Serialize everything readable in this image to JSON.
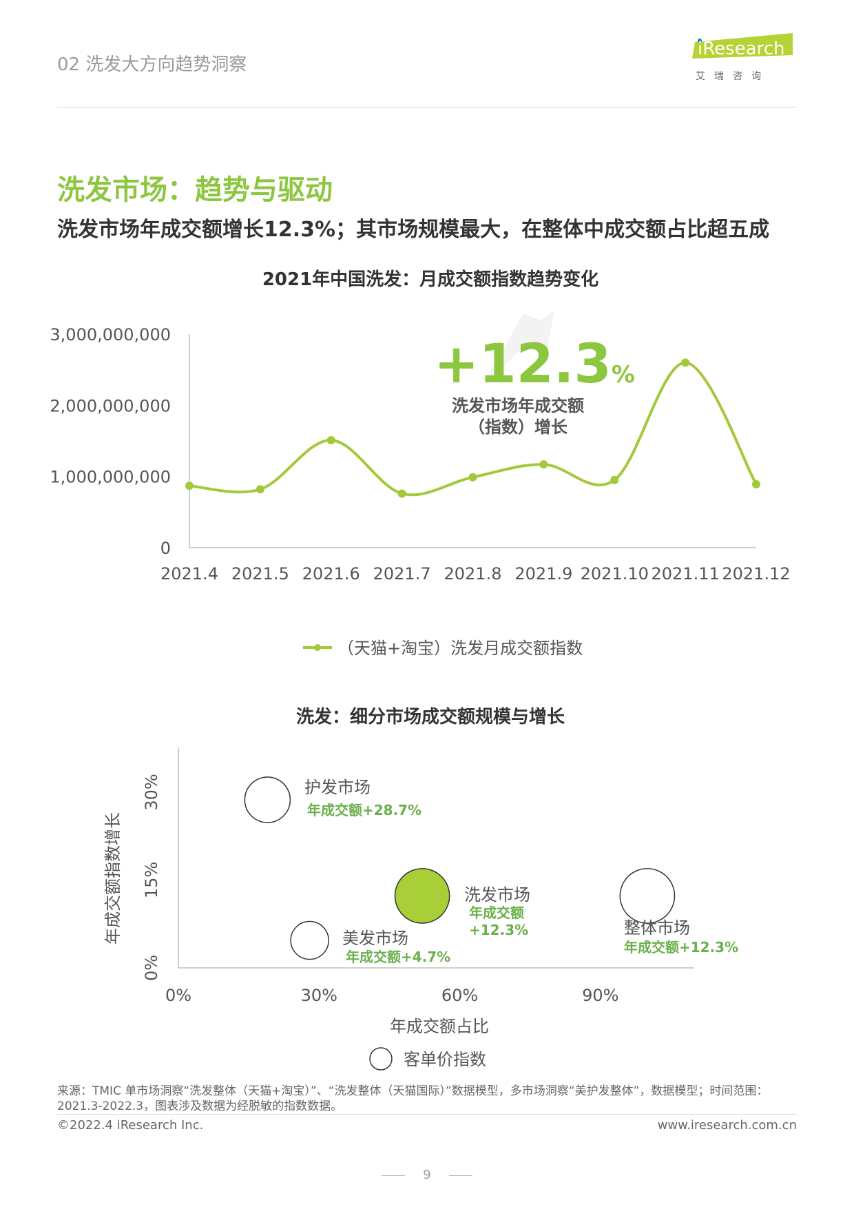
{
  "header": {
    "section": "02 洗发大方向趋势洞察",
    "logo_text": "iResearch",
    "logo_sub": "艾瑞咨询"
  },
  "title": "洗发市场：趋势与驱动",
  "subtitle": "洗发市场年成交额增长12.3%；其市场规模最大，在整体中成交额占比超五成",
  "chart1": {
    "title": "2021年中国洗发：月成交额指数趋势变化",
    "highlight_value": "+12.3",
    "highlight_unit": "%",
    "highlight_line1": "洗发市场年成交额",
    "highlight_line2": "（指数）增长",
    "legend": "（天猫+淘宝）洗发月成交额指数",
    "ytick_labels": [
      "0",
      "1,000,000,000",
      "2,000,000,000",
      "3,000,000,000"
    ]
  },
  "chart2": {
    "title": "洗发：细分市场成交额规模与增长",
    "xlabel": "年成交额占比",
    "ylabel": "年成交额指数增长",
    "xtick_labels": [
      "0%",
      "30%",
      "60%",
      "90%"
    ],
    "ytick_labels": [
      "0%",
      "15%",
      "30%"
    ],
    "legend": "客单价指数"
  },
  "chart_data": [
    {
      "type": "line",
      "title": "2021年中国洗发：月成交额指数趋势变化",
      "x": [
        "2021.4",
        "2021.5",
        "2021.6",
        "2021.7",
        "2021.8",
        "2021.9",
        "2021.10",
        "2021.11",
        "2021.12"
      ],
      "series": [
        {
          "name": "（天猫+淘宝）洗发月成交额指数",
          "values": [
            870000000,
            820000000,
            1510000000,
            760000000,
            990000000,
            1170000000,
            950000000,
            2600000000,
            890000000
          ]
        }
      ],
      "ylim": [
        0,
        3000000000
      ],
      "color": "#a3c93a",
      "legend_position": "bottom"
    },
    {
      "type": "scatter",
      "title": "洗发：细分市场成交额规模与增长",
      "xlabel": "年成交额占比",
      "ylabel": "年成交额指数增长",
      "xlim": [
        0,
        1.1
      ],
      "ylim": [
        0,
        0.3
      ],
      "points": [
        {
          "name": "护发市场",
          "label": "年成交额+28.7%",
          "x": 0.19,
          "y": 0.287,
          "size": 0.6,
          "filled": false
        },
        {
          "name": "洗发市场",
          "label_line1": "年成交额",
          "label_line2": "+12.3%",
          "x": 0.52,
          "y": 0.123,
          "size": 0.72,
          "filled": true
        },
        {
          "name": "美发市场",
          "label": "年成交额+4.7%",
          "x": 0.28,
          "y": 0.047,
          "size": 0.5,
          "filled": false
        },
        {
          "name": "整体市场",
          "label": "年成交额+12.3%",
          "x": 1.0,
          "y": 0.123,
          "size": 0.72,
          "filled": false
        }
      ],
      "bubble_legend": "客单价指数",
      "legend_position": "bottom"
    }
  ],
  "footer": {
    "source": "来源：TMIC 单市场洞察“洗发整体（天猫+淘宝）”、“洗发整体（天猫国际）”数据模型，多市场洞察“美护发整体”，数据模型；时间范围：2021.3-2022.3，图表涉及数据为经脱敏的指数数据。",
    "copyright": "©2022.4 iResearch Inc.",
    "url": "www.iresearch.com.cn",
    "page": "9"
  }
}
